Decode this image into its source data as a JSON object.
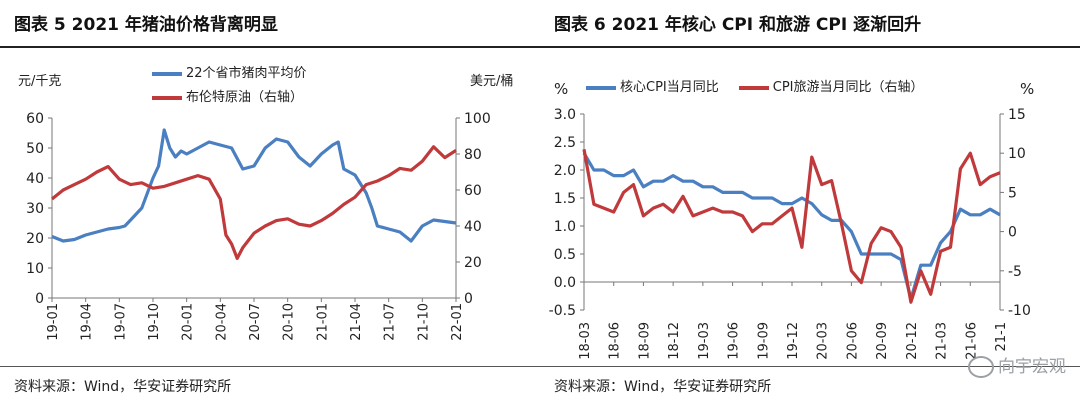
{
  "left": {
    "title": "图表 5 2021 年猪油价格背离明显",
    "left_unit": "元/千克",
    "right_unit": "美元/桶",
    "source": "资料来源：Wind，华安证券研究所"
  },
  "right": {
    "title": "图表 6 2021 年核心 CPI 和旅游 CPI 逐渐回升",
    "left_unit": "%",
    "right_unit": "%",
    "source": "资料来源：Wind，华安证券研究所"
  },
  "watermark": "向宇宏观",
  "chart_data": [
    {
      "type": "line",
      "title": "图表 5 2021 年猪油价格背离明显",
      "xlabel": "",
      "ylabel": "元/千克",
      "y2label": "美元/桶",
      "ylim": [
        0,
        60
      ],
      "y2lim": [
        0,
        100
      ],
      "yticks": [
        0,
        10,
        20,
        30,
        40,
        50,
        60
      ],
      "y2ticks": [
        0,
        20,
        40,
        60,
        80,
        100
      ],
      "xticklabels": [
        "19-01",
        "19-04",
        "19-07",
        "19-10",
        "20-01",
        "20-04",
        "20-07",
        "20-10",
        "21-01",
        "21-04",
        "21-07",
        "21-10",
        "22-01"
      ],
      "legend_position": "top",
      "series": [
        {
          "name": "22个省市猪肉平均价",
          "axis": "left",
          "color": "#4a7fc1",
          "x": [
            0,
            1,
            2,
            3,
            4,
            5,
            6,
            6.5,
            7,
            7.5,
            8,
            8.5,
            9,
            9.5,
            10,
            10.5,
            11,
            11.5,
            12,
            13,
            14,
            15,
            16,
            17,
            18,
            19,
            20,
            21,
            22,
            23,
            24,
            25,
            25.5,
            26,
            27,
            28,
            28.5,
            29,
            30,
            31,
            32,
            33,
            34,
            35,
            36
          ],
          "values": [
            20.5,
            19.0,
            19.5,
            21.0,
            22.0,
            23.0,
            23.5,
            24.0,
            26.0,
            28.0,
            30.0,
            35.0,
            40.0,
            44.0,
            56.0,
            50.0,
            47.0,
            49.0,
            48.0,
            50.0,
            52.0,
            51.0,
            50.0,
            43.0,
            44.0,
            50.0,
            53.0,
            52.0,
            47.0,
            44.0,
            48.0,
            51.0,
            52.0,
            43.0,
            41.0,
            35.0,
            30.0,
            24.0,
            23.0,
            22.0,
            19.0,
            24.0,
            26.0,
            25.5,
            25.0
          ]
        },
        {
          "name": "布伦特原油（右轴）",
          "axis": "right",
          "color": "#c0393b",
          "x": [
            0,
            1,
            2,
            3,
            4,
            5,
            6,
            7,
            8,
            9,
            10,
            11,
            12,
            13,
            14,
            15,
            15.5,
            16,
            16.5,
            17,
            18,
            19,
            20,
            21,
            22,
            23,
            24,
            25,
            26,
            27,
            28,
            29,
            30,
            31,
            32,
            33,
            34,
            35,
            36
          ],
          "values": [
            55,
            60,
            63,
            66,
            70,
            73,
            66,
            63,
            64,
            61,
            62,
            64,
            66,
            68,
            66,
            55,
            35,
            30,
            22,
            28,
            36,
            40,
            43,
            44,
            41,
            40,
            43,
            47,
            52,
            56,
            63,
            65,
            68,
            72,
            71,
            76,
            84,
            78,
            82
          ]
        }
      ]
    },
    {
      "type": "line",
      "title": "图表 6 2021 年核心 CPI 和旅游 CPI 逐渐回升",
      "xlabel": "",
      "ylabel": "%",
      "y2label": "%",
      "ylim": [
        -0.5,
        3.0
      ],
      "y2lim": [
        -10,
        15
      ],
      "yticks": [
        -0.5,
        0.0,
        0.5,
        1.0,
        1.5,
        2.0,
        2.5,
        3.0
      ],
      "y2ticks": [
        -10,
        -5,
        0,
        5,
        10,
        15
      ],
      "xticklabels": [
        "18-03",
        "18-06",
        "18-09",
        "18-12",
        "19-03",
        "19-06",
        "19-09",
        "19-12",
        "20-03",
        "20-06",
        "20-09",
        "20-12",
        "21-03",
        "21-06",
        "21-1"
      ],
      "legend_position": "top",
      "series": [
        {
          "name": "核心CPI当月同比",
          "axis": "left",
          "color": "#4a7fc1",
          "x": [
            0,
            1,
            2,
            3,
            4,
            5,
            6,
            7,
            8,
            9,
            10,
            11,
            12,
            13,
            14,
            15,
            16,
            17,
            18,
            19,
            20,
            21,
            22,
            23,
            24,
            25,
            26,
            27,
            28,
            29,
            30,
            31,
            32,
            33,
            34,
            35,
            36,
            37,
            38,
            39,
            40,
            41,
            42
          ],
          "values": [
            2.3,
            2.0,
            2.0,
            1.9,
            1.9,
            2.0,
            1.7,
            1.8,
            1.8,
            1.9,
            1.8,
            1.8,
            1.7,
            1.7,
            1.6,
            1.6,
            1.6,
            1.5,
            1.5,
            1.5,
            1.4,
            1.4,
            1.5,
            1.4,
            1.2,
            1.1,
            1.1,
            0.9,
            0.5,
            0.5,
            0.5,
            0.5,
            0.4,
            -0.3,
            0.3,
            0.3,
            0.7,
            0.9,
            1.3,
            1.2,
            1.2,
            1.3,
            1.2
          ]
        },
        {
          "name": "CPI旅游当月同比（右轴）",
          "axis": "right",
          "color": "#c0393b",
          "x": [
            0,
            1,
            2,
            3,
            4,
            5,
            6,
            7,
            8,
            9,
            10,
            11,
            12,
            13,
            14,
            15,
            16,
            17,
            18,
            19,
            20,
            21,
            22,
            23,
            24,
            25,
            26,
            27,
            28,
            29,
            30,
            31,
            32,
            33,
            34,
            35,
            36,
            37,
            38,
            39,
            40,
            41,
            42
          ],
          "values": [
            10.5,
            3.5,
            3.0,
            2.5,
            5.0,
            6.0,
            2.0,
            3.0,
            3.5,
            2.5,
            4.5,
            2.0,
            2.5,
            3.0,
            2.5,
            2.5,
            2.0,
            0.0,
            1.0,
            1.0,
            2.0,
            3.0,
            -2.0,
            9.5,
            6.0,
            6.5,
            1.0,
            -5.0,
            -6.5,
            -1.5,
            0.5,
            0.0,
            -2.0,
            -9.0,
            -5.0,
            -8.0,
            -2.5,
            -2.0,
            8.0,
            10.0,
            6.0,
            7.0,
            7.5
          ]
        }
      ]
    }
  ]
}
